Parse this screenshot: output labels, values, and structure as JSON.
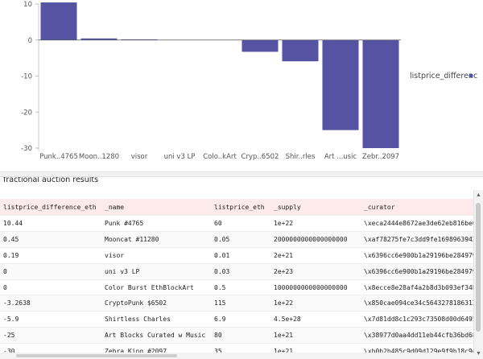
{
  "chart_data": {
    "type": "bar",
    "categories": [
      "Punk..4765",
      "Moon..1280",
      "visor",
      "uni v3 LP",
      "Colo..kArt",
      "Cryp..6502",
      "Shir..rles",
      "Art ...usic",
      "Zebr..2097"
    ],
    "series": [
      {
        "name": "listprice_differenc",
        "values": [
          10.44,
          0.45,
          0.19,
          0,
          0,
          -3.2638,
          -5.9,
          -25,
          -30
        ],
        "color": "#5654a2"
      }
    ],
    "ylim": [
      -30,
      10
    ],
    "yticks": [
      10,
      0,
      -10,
      -20,
      -30
    ],
    "grid": false,
    "legend": "right"
  },
  "table": {
    "title": "fractional auction results",
    "columns": [
      "listprice_difference_eth",
      "_name",
      "listprice_eth",
      "_supply",
      "_curator"
    ],
    "rows": [
      [
        "10.44",
        "Punk #4765",
        "60",
        "1e+22",
        "\\xeca2444e8672ae3de62eb816be0"
      ],
      [
        "0.45",
        "Mooncat #11280",
        "0.05",
        "2000000000000000000",
        "\\xaf78275fe7c3dd9fe1698963942"
      ],
      [
        "0.19",
        "visor",
        "0.01",
        "2e+21",
        "\\x6396cc6e900b1a29196be284979"
      ],
      [
        "0",
        "uni v3 LP",
        "0.03",
        "2e+23",
        "\\x6396cc6e900b1a29196be284979"
      ],
      [
        "0",
        "Color Burst EthBlockArt",
        "0.5",
        "1000000000000000000",
        "\\x8ecce8e28af4a2b8d3b093ef34b"
      ],
      [
        "-3.2638",
        "CryptoPunk $6502",
        "115",
        "1e+22",
        "\\x850cae094ce34c5643278186312"
      ],
      [
        "-5.9",
        "Shirtless Charles",
        "6.9",
        "4.5e+28",
        "\\x7d81dd8c1c293c73508d00d6495"
      ],
      [
        "-25",
        "Art Blocks Curated w Music",
        "80",
        "1e+21",
        "\\x38977d0aa4dd11eb44cfb36bd68"
      ],
      [
        "-30",
        "Zebra King #2097",
        "35",
        "1e+21",
        "\\xb0b2b485c9d09d129e9f9b18c9d"
      ]
    ]
  }
}
